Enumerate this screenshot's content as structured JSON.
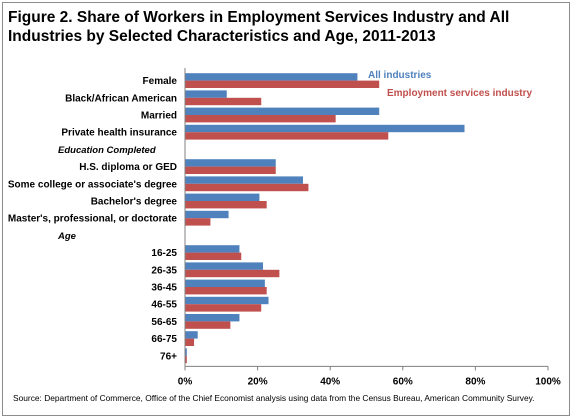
{
  "title": "Figure 2. Share of Workers in Employment Services Industry and All Industries by Selected Characteristics and Age, 2011-2013",
  "source": "Source: Department of Commerce, Office of the Chief Economist analysis using data from the Census Bureau, American Community Survey.",
  "colors": {
    "all_industries": "#4f81bd",
    "employment_services": "#c0504d"
  },
  "chart_data": {
    "type": "bar",
    "orientation": "horizontal",
    "title": "Figure 2. Share of Workers in Employment Services Industry and All Industries by Selected Characteristics and Age, 2011-2013",
    "xlim": [
      0,
      100
    ],
    "ticks": [
      "0%",
      "20%",
      "40%",
      "60%",
      "80%",
      "100%"
    ],
    "grid": false,
    "legend": "top-right",
    "rows": [
      {
        "label": "Female",
        "kind": "category",
        "all": 47.5,
        "emp": 53.5
      },
      {
        "label": "Black/African American",
        "kind": "category",
        "all": 11.5,
        "emp": 21.0
      },
      {
        "label": "Married",
        "kind": "category",
        "all": 53.5,
        "emp": 41.5
      },
      {
        "label": "Private health insurance",
        "kind": "category",
        "all": 77.0,
        "emp": 56.0
      },
      {
        "label": "Education Completed",
        "kind": "section"
      },
      {
        "label": "H.S. diploma or GED",
        "kind": "category",
        "all": 25.0,
        "emp": 25.0
      },
      {
        "label": "Some college or associate's degree",
        "kind": "category",
        "all": 32.5,
        "emp": 34.0
      },
      {
        "label": "Bachelor's degree",
        "kind": "category",
        "all": 20.5,
        "emp": 22.5
      },
      {
        "label": "Master's, professional, or doctorate",
        "kind": "category",
        "all": 12.0,
        "emp": 7.0
      },
      {
        "label": "Age",
        "kind": "section"
      },
      {
        "label": "16-25",
        "kind": "category",
        "all": 15.0,
        "emp": 15.5
      },
      {
        "label": "26-35",
        "kind": "category",
        "all": 21.5,
        "emp": 26.0
      },
      {
        "label": "36-45",
        "kind": "category",
        "all": 22.0,
        "emp": 22.5
      },
      {
        "label": "46-55",
        "kind": "category",
        "all": 23.0,
        "emp": 21.0
      },
      {
        "label": "56-65",
        "kind": "category",
        "all": 15.0,
        "emp": 12.5
      },
      {
        "label": "66-75",
        "kind": "category",
        "all": 3.5,
        "emp": 2.5
      },
      {
        "label": "76+",
        "kind": "category",
        "all": 0.5,
        "emp": 0.5
      }
    ],
    "series": [
      {
        "name": "All industries",
        "key": "all"
      },
      {
        "name": "Employment services industry",
        "key": "emp"
      }
    ]
  }
}
